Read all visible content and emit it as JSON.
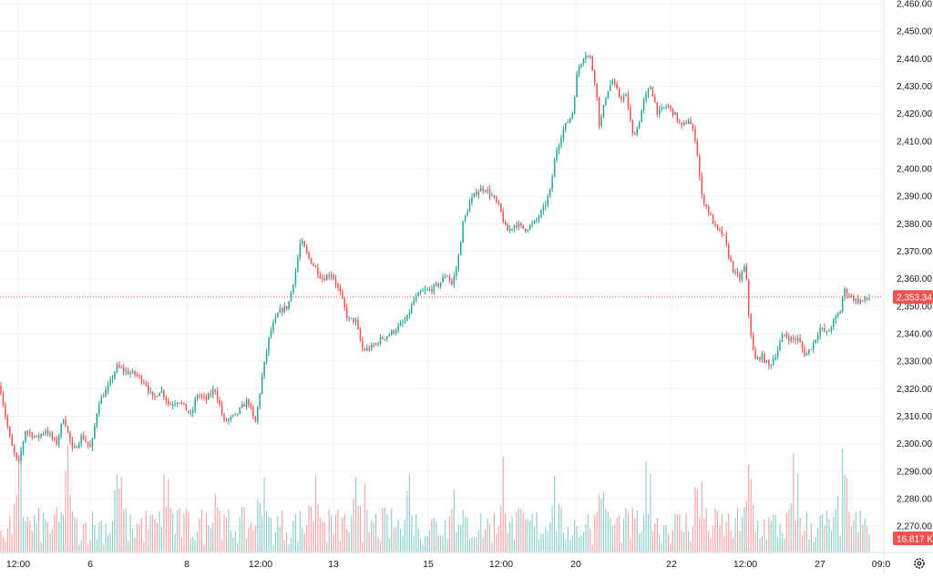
{
  "chart_data": {
    "type": "candlestick",
    "ylim": [
      2265,
      2462
    ],
    "y_ticks": [
      {
        "value": 2460,
        "label": "2,460.00"
      },
      {
        "value": 2450,
        "label": "2,450.00"
      },
      {
        "value": 2440,
        "label": "2,440.00"
      },
      {
        "value": 2430,
        "label": "2,430.00"
      },
      {
        "value": 2420,
        "label": "2,420.00"
      },
      {
        "value": 2410,
        "label": "2,410.00"
      },
      {
        "value": 2400,
        "label": "2,400.00"
      },
      {
        "value": 2390,
        "label": "2,390.00"
      },
      {
        "value": 2380,
        "label": "2,380.00"
      },
      {
        "value": 2370,
        "label": "2,370.00"
      },
      {
        "value": 2360,
        "label": "2,360.00"
      },
      {
        "value": 2350,
        "label": "2,350.00"
      },
      {
        "value": 2340,
        "label": "2,340.00"
      },
      {
        "value": 2330,
        "label": "2,330.00"
      },
      {
        "value": 2320,
        "label": "2,320.00"
      },
      {
        "value": 2310,
        "label": "2,310.00"
      },
      {
        "value": 2300,
        "label": "2,300.00"
      },
      {
        "value": 2290,
        "label": "2,290.00"
      },
      {
        "value": 2280,
        "label": "2,280.00"
      },
      {
        "value": 2270,
        "label": "2,270.00"
      }
    ],
    "x_ticks": [
      "12:00",
      "6",
      "8",
      "12:00",
      "13",
      "15",
      "12:00",
      "20",
      "22",
      "12:00",
      "27",
      "09:0"
    ],
    "price_anchors": [
      [
        0,
        2321
      ],
      [
        6,
        2310
      ],
      [
        12,
        2300
      ],
      [
        20,
        2292
      ],
      [
        28,
        2305
      ],
      [
        40,
        2302
      ],
      [
        50,
        2305
      ],
      [
        62,
        2300
      ],
      [
        70,
        2310
      ],
      [
        80,
        2297
      ],
      [
        90,
        2303
      ],
      [
        100,
        2298
      ],
      [
        108,
        2315
      ],
      [
        118,
        2320
      ],
      [
        128,
        2328
      ],
      [
        140,
        2326
      ],
      [
        150,
        2325
      ],
      [
        160,
        2322
      ],
      [
        168,
        2316
      ],
      [
        176,
        2320
      ],
      [
        186,
        2314
      ],
      [
        196,
        2316
      ],
      [
        210,
        2310
      ],
      [
        216,
        2318
      ],
      [
        226,
        2316
      ],
      [
        236,
        2320
      ],
      [
        246,
        2308
      ],
      [
        258,
        2310
      ],
      [
        272,
        2316
      ],
      [
        280,
        2307
      ],
      [
        288,
        2325
      ],
      [
        296,
        2340
      ],
      [
        306,
        2348
      ],
      [
        316,
        2350
      ],
      [
        324,
        2362
      ],
      [
        330,
        2374
      ],
      [
        338,
        2368
      ],
      [
        346,
        2364
      ],
      [
        354,
        2360
      ],
      [
        364,
        2362
      ],
      [
        374,
        2354
      ],
      [
        382,
        2345
      ],
      [
        390,
        2345
      ],
      [
        398,
        2334
      ],
      [
        408,
        2335
      ],
      [
        418,
        2338
      ],
      [
        428,
        2340
      ],
      [
        436,
        2342
      ],
      [
        446,
        2345
      ],
      [
        454,
        2352
      ],
      [
        462,
        2355
      ],
      [
        472,
        2356
      ],
      [
        482,
        2358
      ],
      [
        490,
        2362
      ],
      [
        496,
        2358
      ],
      [
        502,
        2365
      ],
      [
        508,
        2380
      ],
      [
        516,
        2388
      ],
      [
        524,
        2392
      ],
      [
        532,
        2393
      ],
      [
        540,
        2390
      ],
      [
        548,
        2386
      ],
      [
        556,
        2377
      ],
      [
        566,
        2380
      ],
      [
        576,
        2378
      ],
      [
        586,
        2380
      ],
      [
        596,
        2385
      ],
      [
        604,
        2392
      ],
      [
        610,
        2406
      ],
      [
        618,
        2414
      ],
      [
        628,
        2420
      ],
      [
        634,
        2436
      ],
      [
        642,
        2442
      ],
      [
        648,
        2440
      ],
      [
        654,
        2430
      ],
      [
        658,
        2415
      ],
      [
        666,
        2428
      ],
      [
        672,
        2432
      ],
      [
        680,
        2426
      ],
      [
        688,
        2426
      ],
      [
        694,
        2412
      ],
      [
        700,
        2415
      ],
      [
        706,
        2424
      ],
      [
        714,
        2430
      ],
      [
        722,
        2420
      ],
      [
        732,
        2423
      ],
      [
        740,
        2420
      ],
      [
        748,
        2415
      ],
      [
        756,
        2418
      ],
      [
        764,
        2410
      ],
      [
        770,
        2390
      ],
      [
        778,
        2384
      ],
      [
        786,
        2378
      ],
      [
        794,
        2376
      ],
      [
        800,
        2368
      ],
      [
        806,
        2362
      ],
      [
        812,
        2360
      ],
      [
        818,
        2365
      ],
      [
        822,
        2346
      ],
      [
        828,
        2330
      ],
      [
        836,
        2332
      ],
      [
        844,
        2328
      ],
      [
        852,
        2333
      ],
      [
        860,
        2340
      ],
      [
        868,
        2338
      ],
      [
        876,
        2338
      ],
      [
        884,
        2332
      ],
      [
        892,
        2336
      ],
      [
        900,
        2342
      ],
      [
        908,
        2340
      ],
      [
        916,
        2345
      ],
      [
        922,
        2348
      ],
      [
        926,
        2356
      ],
      [
        932,
        2354
      ],
      [
        940,
        2352
      ],
      [
        948,
        2352
      ],
      [
        956,
        2353.34
      ]
    ],
    "current_price": {
      "value": 2353.34,
      "label": "2,353.34"
    },
    "volume_label": "16.817 K",
    "colors": {
      "up": "#26a69a",
      "down": "#ef5350",
      "grid": "#f0f3fa",
      "price_line": "#ef5350",
      "axis_text": "#131722"
    }
  },
  "icons": {
    "settings": "gear-icon"
  }
}
